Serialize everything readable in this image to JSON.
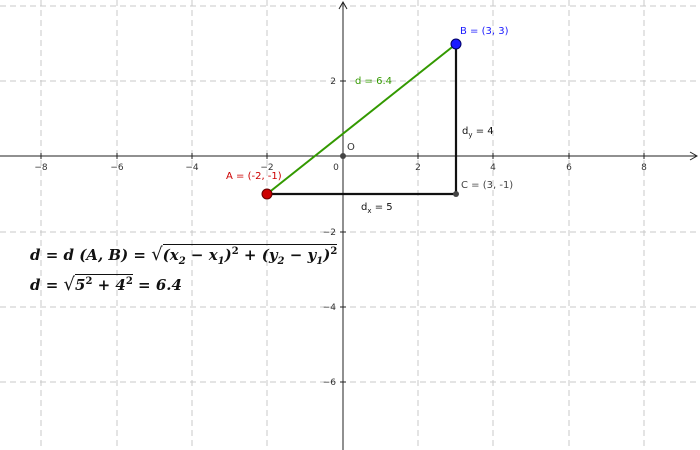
{
  "axes": {
    "x_ticks": [
      "−8",
      "−6",
      "−4",
      "−2",
      "0",
      "2",
      "4",
      "6",
      "8"
    ],
    "y_ticks": [
      "2",
      "−2",
      "−4",
      "−6"
    ],
    "origin_label": "O"
  },
  "points": {
    "A": {
      "label": "A = (-2, -1)",
      "x": -2,
      "y": -1,
      "color": "#cc0000"
    },
    "B": {
      "label": "B = (3, 3)",
      "x": 3,
      "y": 3,
      "color": "#1a1aff"
    },
    "C": {
      "label": "C = (3, -1)",
      "x": 3,
      "y": -1,
      "color": "#444444"
    }
  },
  "segments": {
    "d": {
      "label": "d = 6.4",
      "color": "#339900"
    },
    "dx": {
      "label_main": "d",
      "label_sub": "x",
      "label_rest": " = 5"
    },
    "dy": {
      "label_main": "d",
      "label_sub": "y",
      "label_rest": " = 4"
    }
  },
  "formula1": {
    "lhs": "d = d (A, B) = ",
    "radicand_a": "(x",
    "sub2": "2",
    "minus": " − x",
    "sub1": "1",
    "close_sq": ")",
    "sq": "2",
    "plus": " + (y",
    "sub2b": "2",
    "minus_b": " − y",
    "sub1b": "1",
    "close_sq_b": ")",
    "sq_b": "2"
  },
  "formula2": {
    "lhs": "d = ",
    "base1": "5",
    "exp1": "2",
    "plus": " + 4",
    "exp2": "2",
    "rhs": " = 6.4"
  }
}
